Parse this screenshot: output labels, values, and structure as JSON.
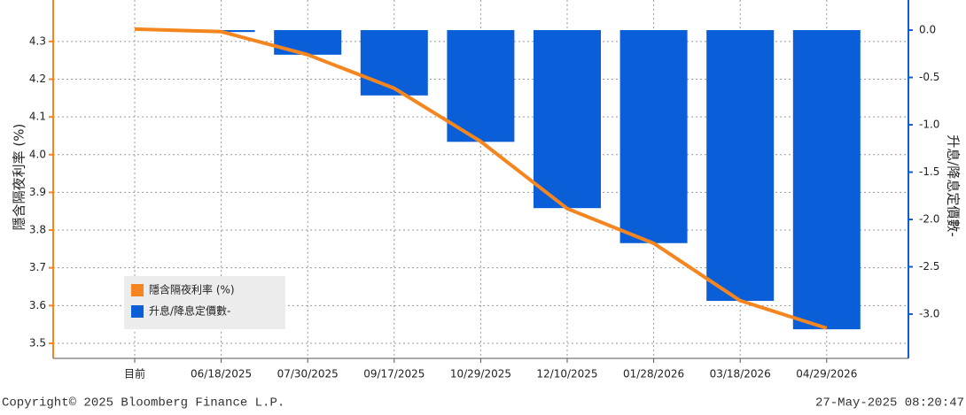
{
  "chart_data": {
    "type": "combo",
    "y_label": "隱含隔夜利率 (%)",
    "y2_label": "升息/降息定價數-",
    "categories": [
      "目前",
      "06/18/2025",
      "07/30/2025",
      "09/17/2025",
      "10/29/2025",
      "12/10/2025",
      "01/28/2026",
      "03/18/2026",
      "04/29/2026"
    ],
    "series": [
      {
        "name": "升息/降息定價數-",
        "type": "bar",
        "axis": "y2",
        "color": "#0a5fd8",
        "values": [
          null,
          -0.02,
          -0.26,
          -0.69,
          -1.18,
          -1.88,
          -2.25,
          -2.86,
          -3.16
        ]
      },
      {
        "name": "隱含隔夜利率 (%)",
        "type": "line",
        "color": "#f5861f",
        "values": [
          4.333,
          4.326,
          4.265,
          4.176,
          4.035,
          3.857,
          3.765,
          3.613,
          3.54
        ]
      }
    ],
    "ylim": [
      3.46,
      4.41
    ],
    "yticks": [
      3.5,
      3.6,
      3.7,
      3.8,
      3.9,
      {
        "value": 4,
        "label": "4.0"
      },
      4.1,
      4.2,
      4.3
    ],
    "y2lim": [
      -3.467,
      0.318
    ],
    "y2ticks": [
      {
        "value": 0,
        "label": "0.0"
      },
      -0.5,
      {
        "value": -1,
        "label": "-1.0"
      },
      -1.5,
      {
        "value": -2,
        "label": "-2.0"
      },
      -2.5,
      {
        "value": -3,
        "label": "-3.0"
      }
    ],
    "grid": true,
    "legend": "lower left",
    "footer_left": "Copyright© 2025 Bloomberg Finance L.P.",
    "footer_right": "27-May-2025 08:20:47"
  }
}
